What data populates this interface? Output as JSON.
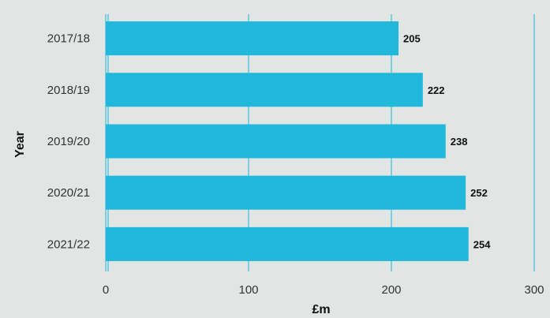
{
  "chart_data": {
    "type": "bar",
    "orientation": "horizontal",
    "categories": [
      "2017/18",
      "2018/19",
      "2019/20",
      "2020/21",
      "2021/22"
    ],
    "values": [
      205,
      222,
      238,
      252,
      254
    ],
    "data_labels": [
      "205",
      "222",
      "238",
      "252",
      "254"
    ],
    "xlabel": "£m",
    "ylabel": "Year",
    "xlim": [
      0,
      300
    ],
    "xticks": [
      "0",
      "100",
      "200",
      "300"
    ],
    "grid": "vertical",
    "legend": "none",
    "colors": {
      "bar": "#21b8dc",
      "grid": "#5cc6e0",
      "background": "#e1e5e4"
    }
  }
}
